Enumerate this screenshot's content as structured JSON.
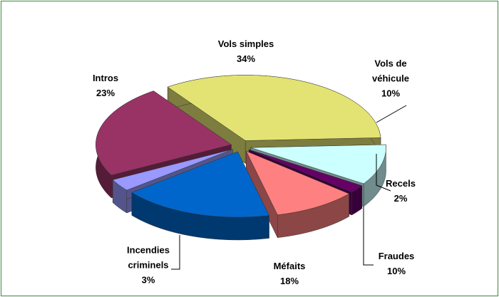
{
  "chart_data": {
    "type": "pie",
    "three_d": true,
    "exploded": true,
    "categories": [
      "Vols simples",
      "Vols de véhicule",
      "Recels",
      "Fraudes",
      "Méfaits",
      "Incendies criminels",
      "Intros"
    ],
    "values": [
      34,
      10,
      2,
      10,
      18,
      3,
      23
    ],
    "value_labels": [
      "34%",
      "10%",
      "2%",
      "10%",
      "18%",
      "3%",
      "23%"
    ],
    "colors": [
      "#e3e373",
      "#ccffff",
      "#660066",
      "#ff8080",
      "#0066cc",
      "#9999ff",
      "#993366"
    ]
  }
}
